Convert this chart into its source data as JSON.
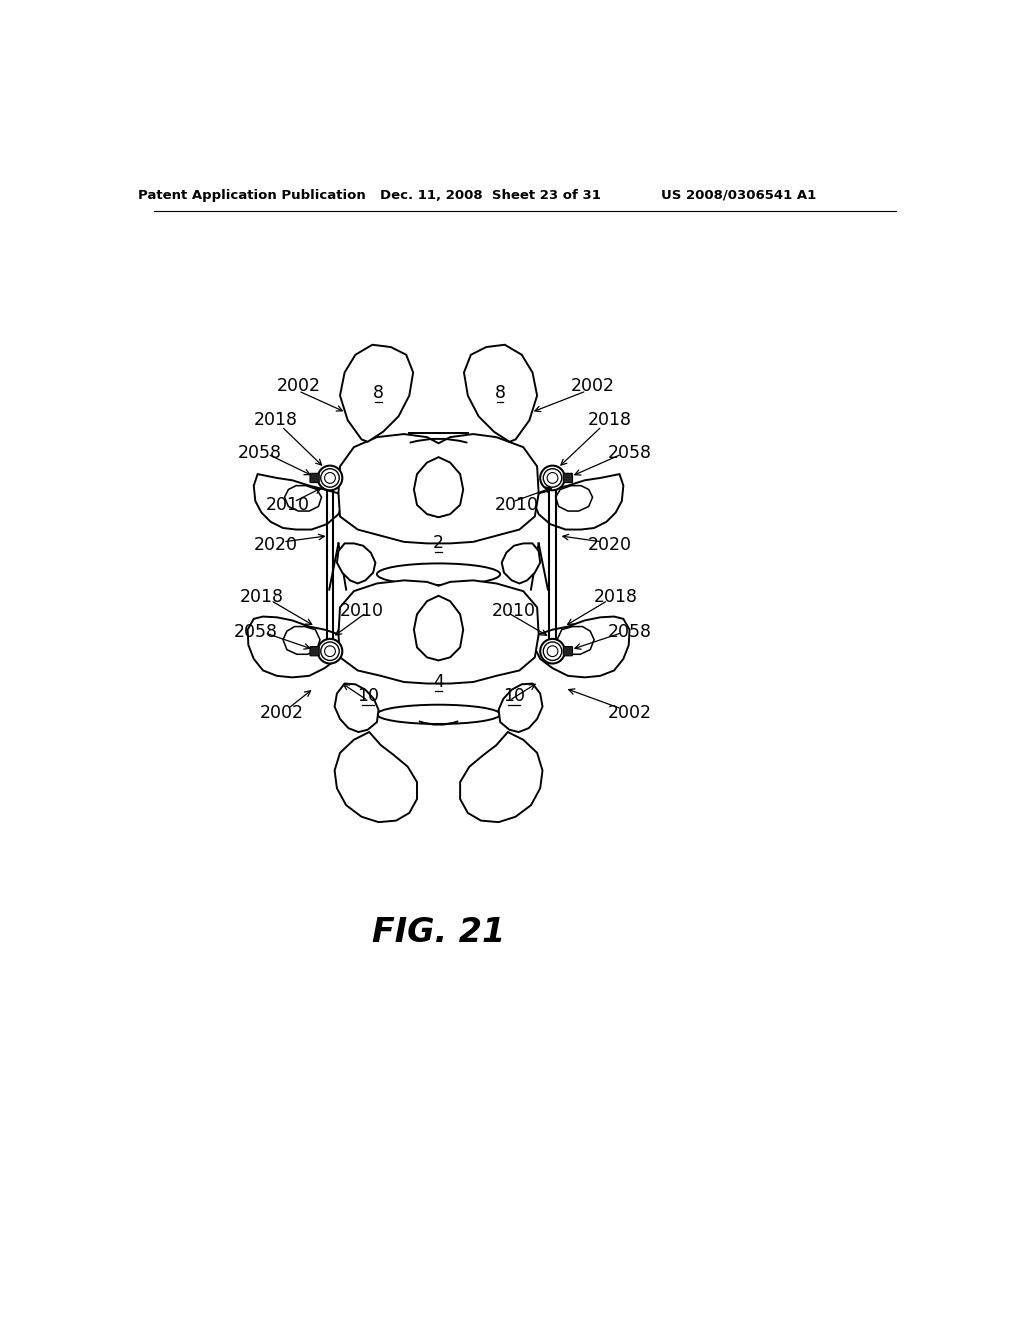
{
  "bg_color": "#ffffff",
  "fig_label": "FIG. 21",
  "header_left": "Patent Application Publication",
  "header_mid": "Dec. 11, 2008  Sheet 23 of 31",
  "header_right": "US 2008/0306541 A1"
}
